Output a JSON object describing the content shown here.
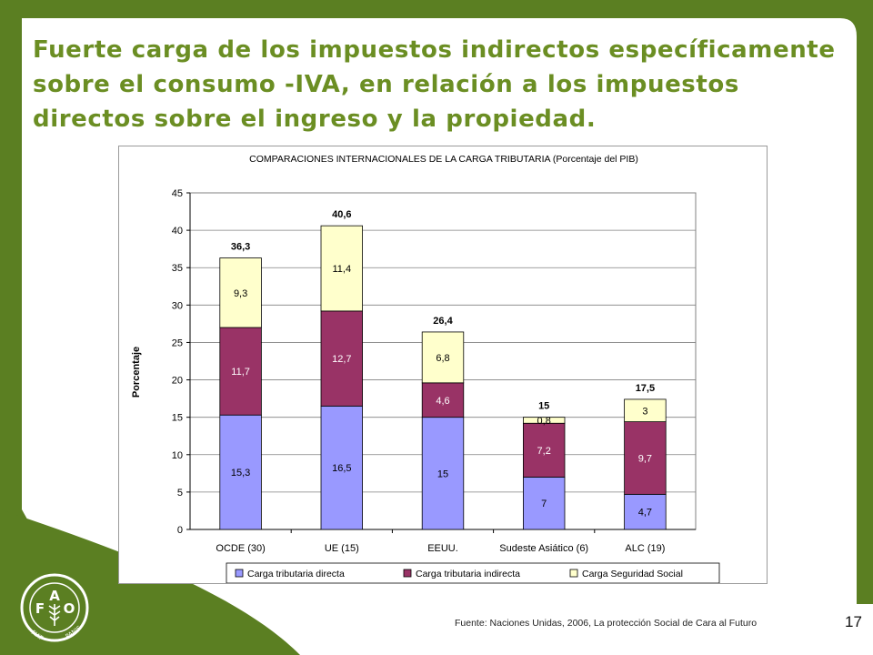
{
  "slide": {
    "title": "Fuerte carga de los impuestos indirectos específicamente sobre el consumo -IVA, en relación a los impuestos directos sobre el ingreso y la propiedad.",
    "source": "Fuente: Naciones Unidas, 2006, La protección Social de Cara al Futuro",
    "page_number": "17",
    "logo_text": "FAO FIAT PANIS"
  },
  "colors": {
    "background_dark": "#5b7f22",
    "background_light": "#ffffff",
    "title": "#6b8e23",
    "series": [
      "#9999ff",
      "#993366",
      "#ffffcc"
    ]
  },
  "chart_data": {
    "type": "bar",
    "stacked": true,
    "title": "COMPARACIONES INTERNACIONALES DE LA CARGA TRIBUTARIA (Porcentaje del PIB)",
    "xlabel": "",
    "ylabel": "Porcentaje",
    "ylim": [
      0,
      45
    ],
    "yticks": [
      0,
      5,
      10,
      15,
      20,
      25,
      30,
      35,
      40,
      45
    ],
    "grid": true,
    "legend_position": "bottom",
    "categories": [
      "OCDE (30)",
      "UE (15)",
      "EEUU.",
      "Sudeste Asiático (6)",
      "ALC (19)"
    ],
    "series": [
      {
        "name": "Carga tributaria directa",
        "values": [
          15.3,
          16.5,
          15,
          7,
          4.7
        ],
        "labels": [
          "15,3",
          "16,5",
          "15",
          "7",
          "4,7"
        ]
      },
      {
        "name": "Carga tributaria indirecta",
        "values": [
          11.7,
          12.7,
          4.6,
          7.2,
          9.7
        ],
        "labels": [
          "11,7",
          "12,7",
          "4,6",
          "7,2",
          "9,7"
        ]
      },
      {
        "name": "Carga Seguridad Social",
        "values": [
          9.3,
          11.4,
          6.8,
          0.8,
          3
        ],
        "labels": [
          "9,3",
          "11,4",
          "6,8",
          "0,8",
          "3"
        ]
      }
    ],
    "totals": [
      36.3,
      40.6,
      26.4,
      15,
      17.5
    ],
    "total_labels": [
      "36,3",
      "40,6",
      "26,4",
      "15",
      "17,5"
    ]
  }
}
